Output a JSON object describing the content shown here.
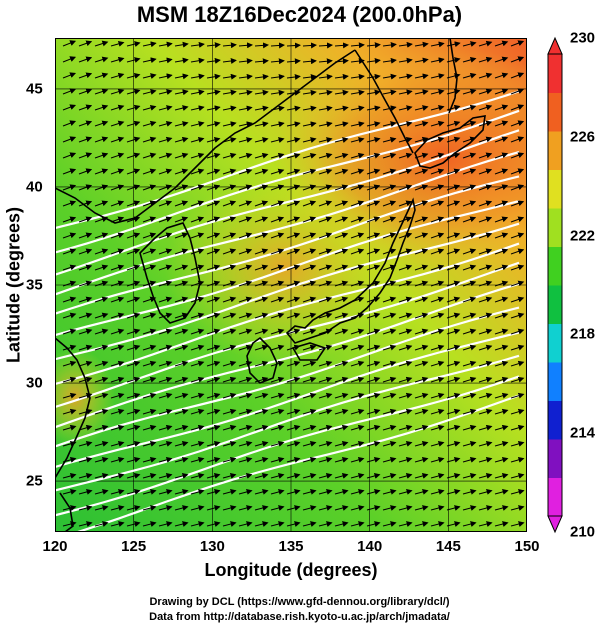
{
  "title": "MSM 18Z16Dec2024 (200.0hPa)",
  "axes": {
    "xlabel": "Longitude (degrees)",
    "ylabel": "Latitude  (degrees)",
    "xticks": [
      "120",
      "125",
      "130",
      "135",
      "140",
      "145",
      "150"
    ],
    "yticks": [
      "25",
      "30",
      "35",
      "40",
      "45"
    ]
  },
  "colorbar": {
    "ticks": [
      "210",
      "214",
      "218",
      "222",
      "226",
      "230"
    ],
    "colors": [
      "#e020e0",
      "#8010c0",
      "#1020d0",
      "#1080ff",
      "#10d0d0",
      "#10c040",
      "#40d020",
      "#a0e020",
      "#e0e020",
      "#f0a020",
      "#f06020",
      "#f03030"
    ]
  },
  "credits": [
    "Drawing by DCL (https://www.gfd-dennou.org/library/dcl/)",
    "Data from http://database.rish.kyoto-u.ac.jp/arch/jmadata/"
  ],
  "chart_data": {
    "type": "heatmap",
    "title": "MSM 18Z16Dec2024 (200.0hPa)",
    "xlabel": "Longitude (degrees)",
    "ylabel": "Latitude  (degrees)",
    "xlim": [
      120,
      150
    ],
    "ylim": [
      22.4,
      47.6
    ],
    "colorbar_range": [
      210,
      230
    ],
    "colorbar_ticks": [
      210,
      214,
      218,
      222,
      226,
      230
    ],
    "grid": true,
    "overlays": [
      "wind vectors",
      "white contour lines",
      "coastlines"
    ]
  }
}
